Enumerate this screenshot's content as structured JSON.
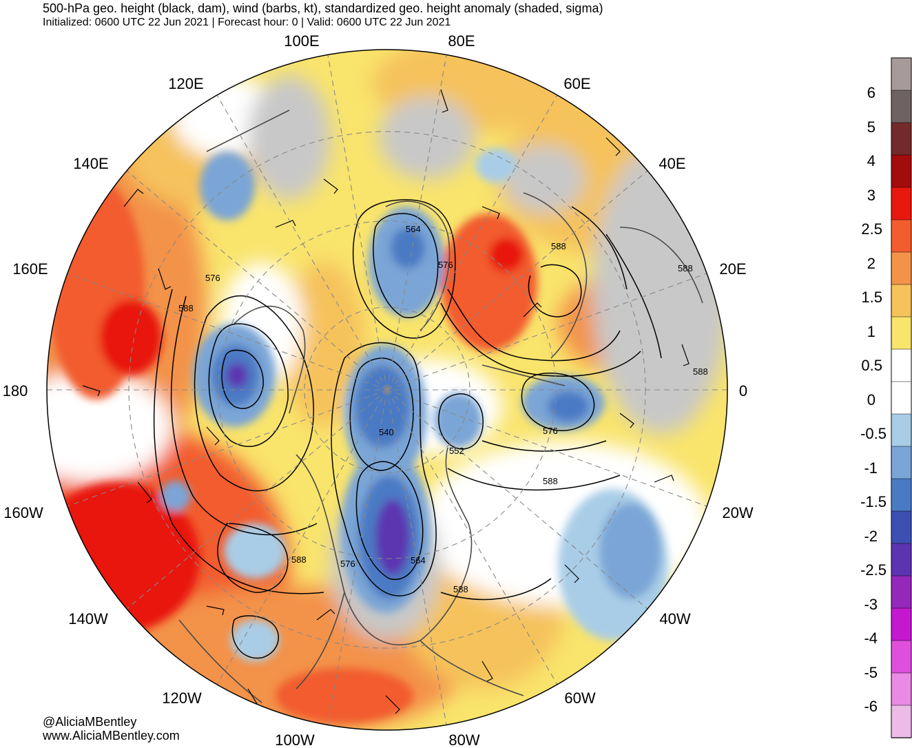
{
  "header": {
    "title": "500-hPa geo. height (black, dam), wind (barbs, kt), standardized geo. height anomaly (shaded, sigma)",
    "subtitle": "Initialized: 0600 UTC 22 Jun 2021 | Forecast hour: 0 | Valid: 0600 UTC 22 Jun 2021"
  },
  "map": {
    "projection": "north-polar-stereographic",
    "longitude_labels": [
      "100E",
      "80E",
      "120E",
      "60E",
      "140E",
      "40E",
      "160E",
      "20E",
      "180",
      "0",
      "160W",
      "20W",
      "140W",
      "40W",
      "120W",
      "60W",
      "100W",
      "80W"
    ],
    "contour_labels": [
      "564",
      "576",
      "588",
      "576",
      "588",
      "588",
      "588",
      "540",
      "552",
      "576",
      "588",
      "588",
      "576",
      "564",
      "588"
    ]
  },
  "colorbar": {
    "ticks": [
      "6",
      "5",
      "4",
      "3",
      "2.5",
      "2",
      "1.5",
      "1",
      "0.5",
      "0",
      "-0.5",
      "-1",
      "-1.5",
      "-2",
      "-2.5",
      "-3",
      "-4",
      "-5",
      "-6"
    ],
    "colors": [
      "#a69a9a",
      "#6e6262",
      "#722a2a",
      "#a30c0c",
      "#e8180f",
      "#f25c2e",
      "#f39249",
      "#f5c25c",
      "#f9e46c",
      "#ffffff",
      "#ffffff",
      "#a9cde7",
      "#7aa5d6",
      "#4b7ac4",
      "#3d4fb0",
      "#5c34b0",
      "#9428b9",
      "#c418d0",
      "#de50dc",
      "#e98ae4",
      "#ecbbe6"
    ]
  },
  "credits": {
    "line1": "@AliciaMBentley",
    "line2": "www.AliciaMBentley.com"
  }
}
